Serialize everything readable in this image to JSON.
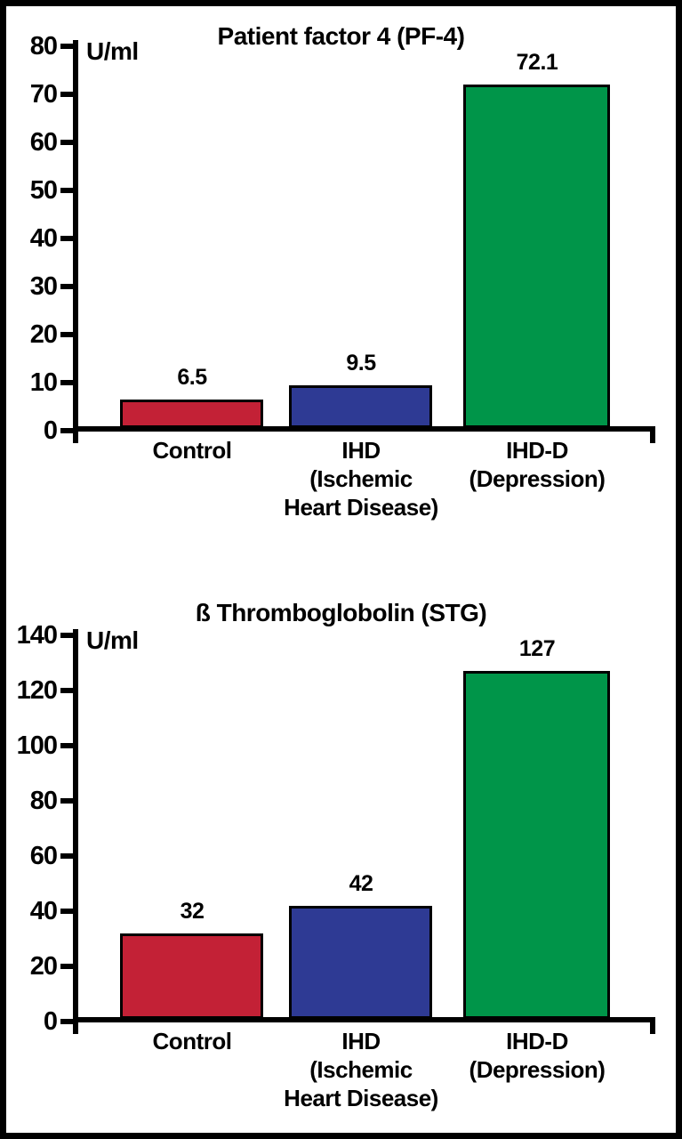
{
  "page": {
    "background": "#ffffff",
    "frame_border_color": "#000000",
    "text_color": "#000000"
  },
  "chart_data": [
    {
      "type": "bar",
      "title": "Patient factor 4 (PF-4)",
      "unit_label": "U/ml",
      "ylabel": "U/ml",
      "xlabel": "",
      "categories": [
        "Control",
        "IHD\n(Ischemic\nHeart Disease)",
        "IHD-D\n(Depression)"
      ],
      "values": [
        6.5,
        9.5,
        72.1
      ],
      "value_labels": [
        "6.5",
        "9.5",
        "72.1"
      ],
      "bar_colors": [
        "#c32136",
        "#2e3a94",
        "#009549"
      ],
      "ylim": [
        0,
        80
      ],
      "yticks": [
        0,
        10,
        20,
        30,
        40,
        50,
        60,
        70,
        80
      ],
      "grid": false,
      "legend": "none",
      "axis_color": "#000000"
    },
    {
      "type": "bar",
      "title": "ß Thromboglobolin (STG)",
      "unit_label": "U/ml",
      "ylabel": "U/ml",
      "xlabel": "",
      "categories": [
        "Control",
        "IHD\n(Ischemic\nHeart Disease)",
        "IHD-D\n(Depression)"
      ],
      "values": [
        32,
        42,
        127
      ],
      "value_labels": [
        "32",
        "42",
        "127"
      ],
      "bar_colors": [
        "#c32136",
        "#2e3a94",
        "#009549"
      ],
      "ylim": [
        0,
        140
      ],
      "yticks": [
        0,
        20,
        40,
        60,
        80,
        100,
        120,
        140
      ],
      "grid": false,
      "legend": "none",
      "axis_color": "#000000"
    }
  ]
}
